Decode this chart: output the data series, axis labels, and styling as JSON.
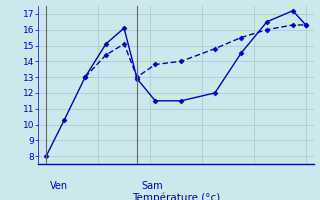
{
  "xlabel": "Température (°c)",
  "bg_color": "#cce8ec",
  "grid_color": "#aaccd0",
  "line_color": "#0000cc",
  "axis_color": "#0000cc",
  "text_color": "#0000cc",
  "vline_color": "#666666",
  "ylim": [
    7.5,
    17.5
  ],
  "xlim": [
    -0.3,
    10.3
  ],
  "yticks": [
    8,
    9,
    10,
    11,
    12,
    13,
    14,
    15,
    16,
    17
  ],
  "ven_x": 0.0,
  "sam_x": 3.5,
  "line1_x": [
    0.0,
    0.7,
    1.5,
    2.3,
    3.0,
    3.5,
    4.2,
    5.2,
    6.5,
    7.5,
    8.5,
    9.5,
    10.0
  ],
  "line1_y": [
    8.0,
    10.3,
    13.0,
    15.1,
    16.1,
    12.9,
    11.5,
    11.5,
    12.0,
    14.5,
    16.5,
    17.2,
    16.3
  ],
  "line2_x": [
    1.5,
    2.3,
    3.0,
    3.5,
    4.2,
    5.2,
    6.5,
    7.5,
    8.5,
    9.5,
    10.0
  ],
  "line2_y": [
    13.0,
    14.4,
    15.1,
    13.0,
    13.8,
    14.0,
    14.8,
    15.5,
    16.0,
    16.3,
    16.3
  ],
  "ven_label": "Ven",
  "sam_label": "Sam",
  "ytick_fontsize": 6.5,
  "xlabel_fontsize": 7.5,
  "label_fontsize": 7.0
}
